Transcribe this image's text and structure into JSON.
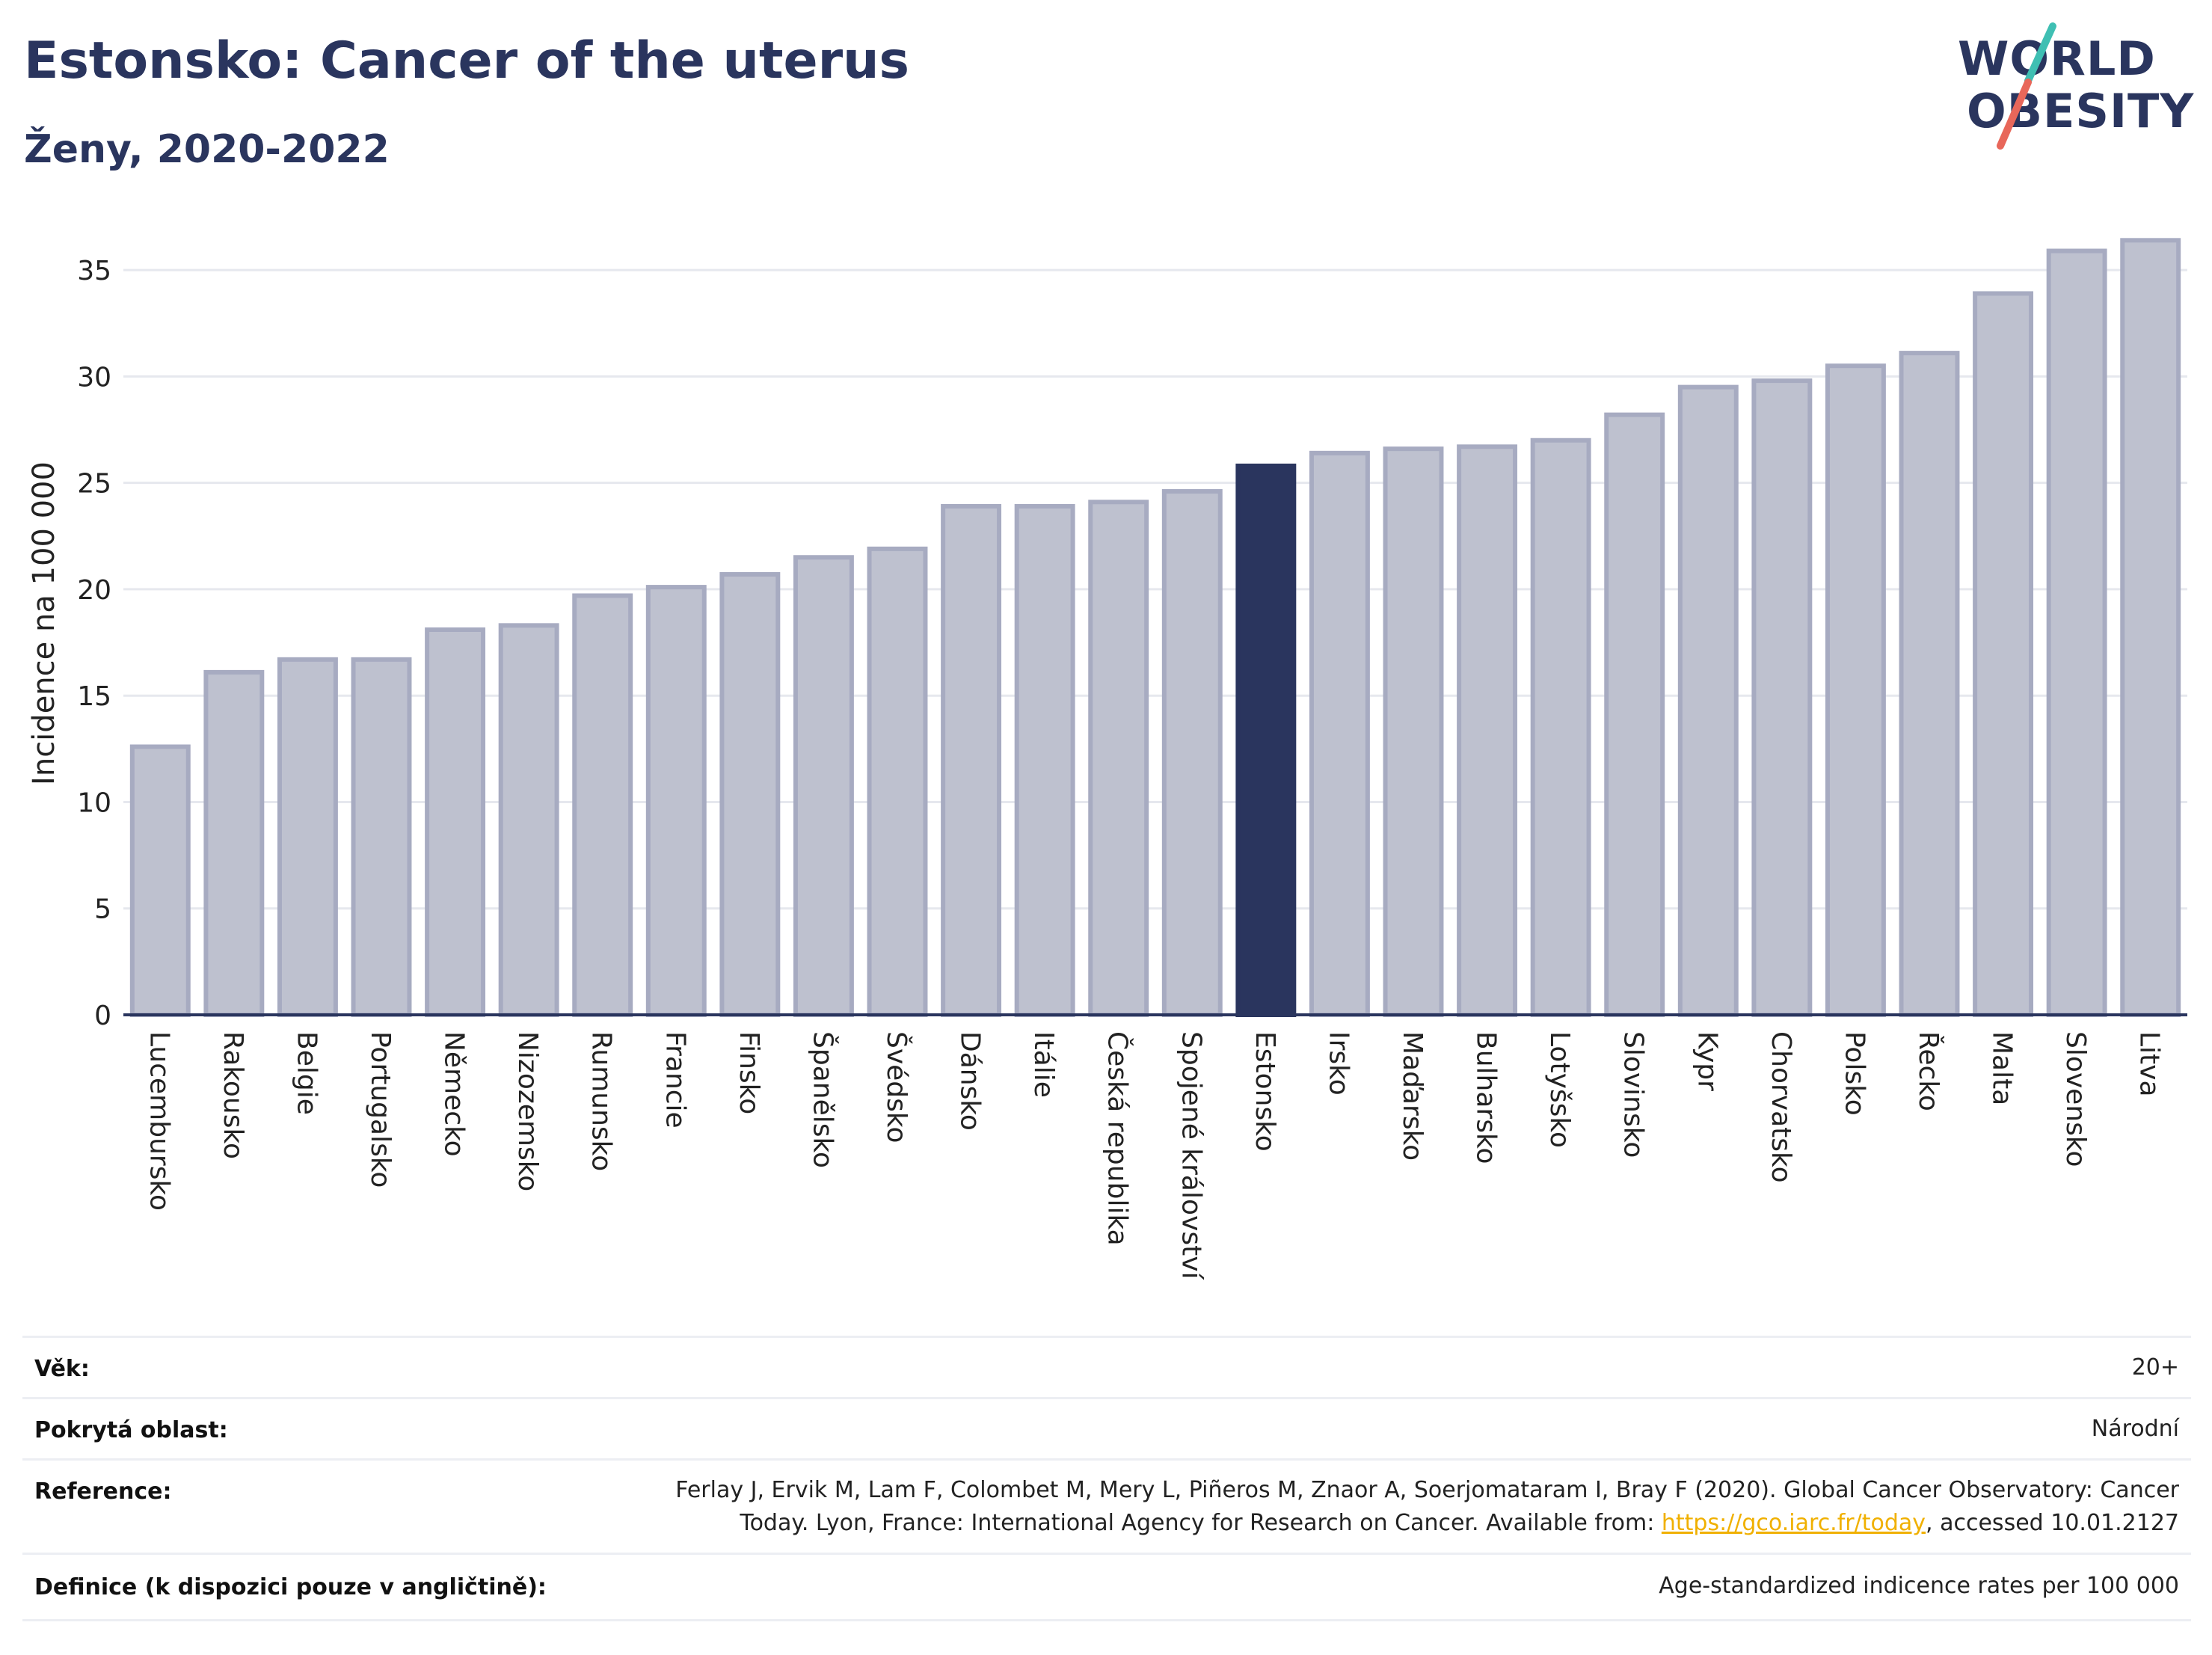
{
  "header": {
    "title": "Estonsko: Cancer of the uterus",
    "subtitle": "Ženy, 2020-2022"
  },
  "logo": {
    "line1": "WORLD",
    "line2": "OBESITY",
    "colors": {
      "text": "#2a355e",
      "slash_top": "#3fbfb3",
      "slash_bottom": "#e8675a"
    }
  },
  "colors": {
    "bar": "#bec1cf",
    "bar_border": "#a7abc1",
    "highlight": "#2a355e",
    "grid": "#e6e8ee",
    "axis": "#2a355e"
  },
  "chart_data": {
    "type": "bar",
    "title": "Estonsko: Cancer of the uterus",
    "subtitle": "Ženy, 2020-2022",
    "xlabel": "",
    "ylabel": "Incidence na 100 000",
    "ylim": [
      0,
      37.5
    ],
    "yticks": [
      0,
      5,
      10,
      15,
      20,
      25,
      30,
      35
    ],
    "grid": true,
    "highlight": "Estonsko",
    "categories": [
      "Lucembursko",
      "Rakousko",
      "Belgie",
      "Portugalsko",
      "Německo",
      "Nizozemsko",
      "Rumunsko",
      "Francie",
      "Finsko",
      "Španělsko",
      "Švédsko",
      "Dánsko",
      "Itálie",
      "Česká republika",
      "Spojené království",
      "Estonsko",
      "Irsko",
      "Maďarsko",
      "Bulharsko",
      "Lotyšsko",
      "Slovinsko",
      "Kypr",
      "Chorvatsko",
      "Polsko",
      "Řecko",
      "Malta",
      "Slovensko",
      "Litva"
    ],
    "values": [
      12.6,
      16.1,
      16.7,
      16.7,
      18.1,
      18.3,
      19.7,
      20.1,
      20.7,
      21.5,
      21.9,
      23.9,
      23.9,
      24.1,
      24.6,
      25.8,
      26.4,
      26.6,
      26.7,
      27.0,
      28.2,
      29.5,
      29.8,
      30.5,
      31.1,
      33.9,
      35.9,
      36.4
    ]
  },
  "info": {
    "age_label": "Věk:",
    "age_value": "20+",
    "coverage_label": "Pokrytá oblast:",
    "coverage_value": "Národní",
    "reference_label": "Reference:",
    "reference_line1": "Ferlay J, Ervik M, Lam F, Colombet M, Mery L, Piñeros M, Znaor A, Soerjomataram I, Bray F (2020). Global Cancer Observatory: Cancer",
    "reference_line2_pre": "Today. Lyon, France: International Agency for Research on Cancer. Available from: ",
    "reference_link": "https://gco.iarc.fr/today",
    "reference_line2_post": ", accessed 10.01.2127",
    "definition_label": "Definice (k dispozici pouze v angličtině):",
    "definition_value": "Age-standardized indicence rates per 100 000"
  }
}
